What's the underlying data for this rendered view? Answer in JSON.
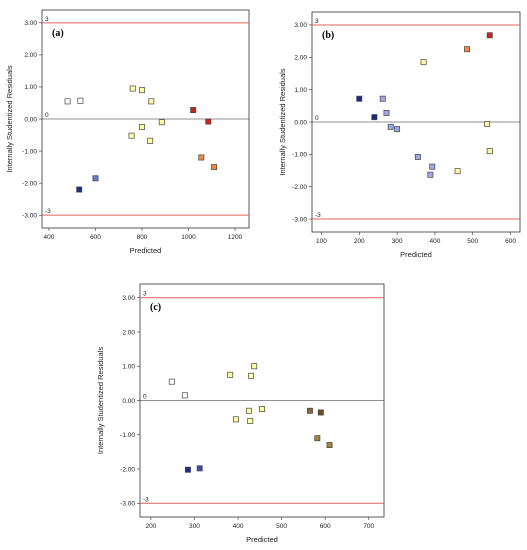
{
  "colors": {
    "frame": "#333333",
    "limit_line": "#e06060",
    "zero_line": "#222222"
  },
  "chart_data": [
    {
      "type": "scatter",
      "panel_label": "(a)",
      "xlabel": "Predicted",
      "ylabel": "Internally Studentized Residuals",
      "xlim": [
        370,
        1260
      ],
      "ylim": [
        -3.4,
        3.4
      ],
      "xticks": [
        "400",
        "600",
        "800",
        "1000",
        "1200"
      ],
      "xtick_values": [
        400,
        600,
        800,
        1000,
        1200
      ],
      "yticks": [
        "-3.00",
        "-2.00",
        "-1.00",
        "0.00",
        "1.00",
        "2.00",
        "3.00"
      ],
      "ytick_values": [
        -3,
        -2,
        -1,
        0,
        1,
        2,
        3
      ],
      "ref_lines": [
        {
          "value": 3,
          "label": "3",
          "kind": "limit"
        },
        {
          "value": 0,
          "label": "0",
          "kind": "zero"
        },
        {
          "value": -3,
          "label": "-3",
          "kind": "limit"
        }
      ],
      "points": [
        {
          "x": 480,
          "y": 0.55,
          "color": "#ffffff"
        },
        {
          "x": 535,
          "y": 0.57,
          "color": "#ffffff"
        },
        {
          "x": 530,
          "y": -2.2,
          "color": "#1b2a8c"
        },
        {
          "x": 600,
          "y": -1.85,
          "color": "#6b78c8"
        },
        {
          "x": 760,
          "y": 0.95,
          "color": "#ffffa0"
        },
        {
          "x": 800,
          "y": 0.9,
          "color": "#ffffa0"
        },
        {
          "x": 840,
          "y": 0.55,
          "color": "#ffffa0"
        },
        {
          "x": 755,
          "y": -0.52,
          "color": "#ffffa0"
        },
        {
          "x": 800,
          "y": -0.25,
          "color": "#ffffa0"
        },
        {
          "x": 835,
          "y": -0.68,
          "color": "#ffffa0"
        },
        {
          "x": 885,
          "y": -0.1,
          "color": "#ffffa0"
        },
        {
          "x": 1020,
          "y": 0.28,
          "color": "#cc2222"
        },
        {
          "x": 1085,
          "y": -0.08,
          "color": "#cc2222"
        },
        {
          "x": 1055,
          "y": -1.2,
          "color": "#f08a40"
        },
        {
          "x": 1110,
          "y": -1.5,
          "color": "#f08a40"
        }
      ]
    },
    {
      "type": "scatter",
      "panel_label": "(b)",
      "xlabel": "Predicted",
      "ylabel": "Internally Studentized Residuals",
      "xlim": [
        75,
        625
      ],
      "ylim": [
        -3.4,
        3.4
      ],
      "xticks": [
        "100",
        "200",
        "300",
        "400",
        "500",
        "600"
      ],
      "xtick_values": [
        100,
        200,
        300,
        400,
        500,
        600
      ],
      "yticks": [
        "-3.00",
        "-2.00",
        "-1.00",
        "0.00",
        "1.00",
        "2.00",
        "3.00"
      ],
      "ytick_values": [
        -3,
        -2,
        -1,
        0,
        1,
        2,
        3
      ],
      "ref_lines": [
        {
          "value": 3,
          "label": "3",
          "kind": "limit"
        },
        {
          "value": 0,
          "label": "0",
          "kind": "zero"
        },
        {
          "value": -3,
          "label": "-3",
          "kind": "limit"
        }
      ],
      "points": [
        {
          "x": 200,
          "y": 0.72,
          "color": "#1b2a8c"
        },
        {
          "x": 240,
          "y": 0.15,
          "color": "#1b2a8c"
        },
        {
          "x": 262,
          "y": 0.72,
          "color": "#a0a8e8"
        },
        {
          "x": 272,
          "y": 0.28,
          "color": "#a0a8e8"
        },
        {
          "x": 283,
          "y": -0.15,
          "color": "#a0a8e8"
        },
        {
          "x": 300,
          "y": -0.22,
          "color": "#a0a8e8"
        },
        {
          "x": 355,
          "y": -1.08,
          "color": "#a0a8e8"
        },
        {
          "x": 393,
          "y": -1.38,
          "color": "#a0a8e8"
        },
        {
          "x": 388,
          "y": -1.63,
          "color": "#a0a8e8"
        },
        {
          "x": 370,
          "y": 1.85,
          "color": "#ffffa0"
        },
        {
          "x": 460,
          "y": -1.52,
          "color": "#ffffa0"
        },
        {
          "x": 485,
          "y": 2.25,
          "color": "#f08a40"
        },
        {
          "x": 545,
          "y": 2.68,
          "color": "#cc2222"
        },
        {
          "x": 538,
          "y": -0.06,
          "color": "#ffffa0"
        },
        {
          "x": 545,
          "y": -0.9,
          "color": "#ffffa0"
        }
      ]
    },
    {
      "type": "scatter",
      "panel_label": "(c)",
      "xlabel": "Predicted",
      "ylabel": "Internally Studentized Residuals",
      "xlim": [
        175,
        735
      ],
      "ylim": [
        -3.4,
        3.4
      ],
      "xticks": [
        "200",
        "300",
        "400",
        "500",
        "600",
        "700"
      ],
      "xtick_values": [
        200,
        300,
        400,
        500,
        600,
        700
      ],
      "yticks": [
        "-3.00",
        "-2.00",
        "-1.00",
        "0.00",
        "1.00",
        "2.00",
        "3.00"
      ],
      "ytick_values": [
        -3,
        -2,
        -1,
        0,
        1,
        2,
        3
      ],
      "ref_lines": [
        {
          "value": 3,
          "label": "3",
          "kind": "limit"
        },
        {
          "value": 0,
          "label": "0",
          "kind": "zero"
        },
        {
          "value": -3,
          "label": "-3",
          "kind": "limit"
        }
      ],
      "points": [
        {
          "x": 248,
          "y": 0.55,
          "color": "#ffffff"
        },
        {
          "x": 278,
          "y": 0.15,
          "color": "#ffffff"
        },
        {
          "x": 285,
          "y": -2.02,
          "color": "#1b2a8c"
        },
        {
          "x": 312,
          "y": -1.98,
          "color": "#3c4cb0"
        },
        {
          "x": 382,
          "y": 0.75,
          "color": "#ffffa0"
        },
        {
          "x": 430,
          "y": 0.72,
          "color": "#ffffa0"
        },
        {
          "x": 437,
          "y": 1.0,
          "color": "#ffffa0"
        },
        {
          "x": 395,
          "y": -0.55,
          "color": "#ffffa0"
        },
        {
          "x": 425,
          "y": -0.3,
          "color": "#ffffa0"
        },
        {
          "x": 428,
          "y": -0.6,
          "color": "#ffffa0"
        },
        {
          "x": 455,
          "y": -0.25,
          "color": "#ffffa0"
        },
        {
          "x": 565,
          "y": -0.3,
          "color": "#8a6a3a"
        },
        {
          "x": 590,
          "y": -0.35,
          "color": "#6e4e22"
        },
        {
          "x": 582,
          "y": -1.1,
          "color": "#a8823a"
        },
        {
          "x": 610,
          "y": -1.3,
          "color": "#a8823a"
        }
      ]
    }
  ]
}
